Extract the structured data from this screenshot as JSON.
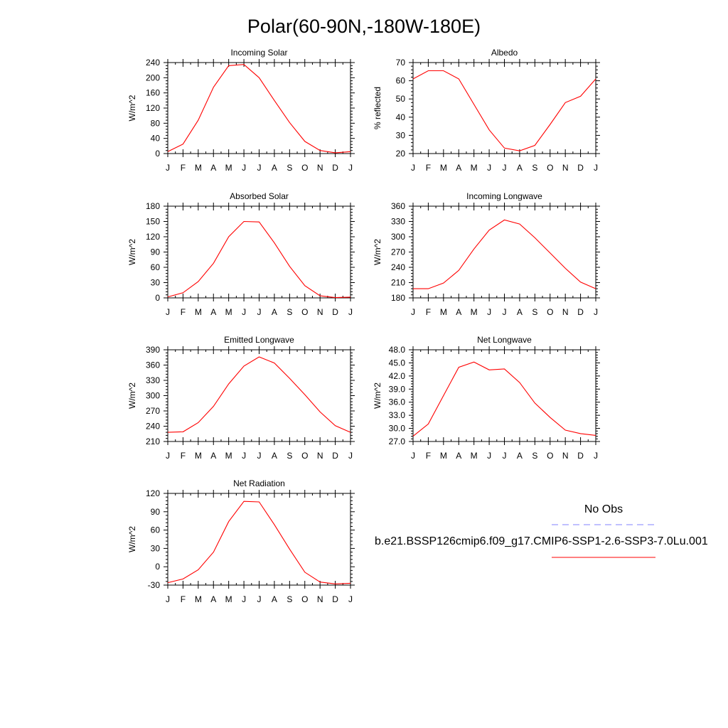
{
  "figure": {
    "title": "Polar(60-90N,-180W-180E)"
  },
  "chart_data": [
    {
      "type": "line",
      "title": "Incoming Solar",
      "xlabel": "",
      "ylabel": "W/m^2",
      "x": [
        "J",
        "F",
        "M",
        "A",
        "M",
        "J",
        "J",
        "A",
        "S",
        "O",
        "N",
        "D",
        "J"
      ],
      "ylim": [
        0,
        240
      ],
      "yticks": [
        0,
        40,
        80,
        120,
        160,
        200,
        240
      ],
      "ytick_labels": [
        "0",
        "40",
        "80",
        "120",
        "160",
        "200",
        "240"
      ],
      "series": [
        {
          "values": [
            5,
            25,
            88,
            175,
            232,
            235,
            200,
            140,
            82,
            32,
            8,
            2,
            5
          ]
        }
      ]
    },
    {
      "type": "line",
      "title": "Albedo",
      "xlabel": "",
      "ylabel": "% reflected",
      "x": [
        "J",
        "F",
        "M",
        "A",
        "M",
        "J",
        "J",
        "A",
        "S",
        "O",
        "N",
        "D",
        "J"
      ],
      "ylim": [
        20,
        70
      ],
      "yticks": [
        20,
        30,
        40,
        50,
        60,
        70
      ],
      "ytick_labels": [
        "20",
        "30",
        "40",
        "50",
        "60",
        "70"
      ],
      "series": [
        {
          "values": [
            61,
            65.5,
            65.5,
            61,
            47,
            33,
            23,
            21.5,
            24.5,
            36,
            48,
            51.5,
            61
          ]
        }
      ]
    },
    {
      "type": "line",
      "title": "Absorbed Solar",
      "xlabel": "",
      "ylabel": "W/m^2",
      "x": [
        "J",
        "F",
        "M",
        "A",
        "M",
        "J",
        "J",
        "A",
        "S",
        "O",
        "N",
        "D",
        "J"
      ],
      "ylim": [
        0,
        180
      ],
      "yticks": [
        0,
        30,
        60,
        90,
        120,
        150,
        180
      ],
      "ytick_labels": [
        "0",
        "30",
        "60",
        "90",
        "120",
        "150",
        "180"
      ],
      "series": [
        {
          "values": [
            2,
            10,
            32,
            68,
            120,
            150,
            149,
            108,
            62,
            24,
            4,
            0.5,
            1.5
          ]
        }
      ]
    },
    {
      "type": "line",
      "title": "Incoming Longwave",
      "xlabel": "",
      "ylabel": "W/m^2",
      "x": [
        "J",
        "F",
        "M",
        "A",
        "M",
        "J",
        "J",
        "A",
        "S",
        "O",
        "N",
        "D",
        "J"
      ],
      "ylim": [
        180,
        360
      ],
      "yticks": [
        180,
        210,
        240,
        270,
        300,
        330,
        360
      ],
      "ytick_labels": [
        "180",
        "210",
        "240",
        "270",
        "300",
        "330",
        "360"
      ],
      "series": [
        {
          "values": [
            198,
            198,
            209,
            234,
            276,
            313,
            333,
            325,
            298,
            268,
            238,
            211,
            198
          ]
        }
      ]
    },
    {
      "type": "line",
      "title": "Emitted Longwave",
      "xlabel": "",
      "ylabel": "W/m^2",
      "x": [
        "J",
        "F",
        "M",
        "A",
        "M",
        "J",
        "J",
        "A",
        "S",
        "O",
        "N",
        "D",
        "J"
      ],
      "ylim": [
        210,
        390
      ],
      "yticks": [
        210,
        240,
        270,
        300,
        330,
        360,
        390
      ],
      "ytick_labels": [
        "210",
        "240",
        "270",
        "300",
        "330",
        "360",
        "390"
      ],
      "series": [
        {
          "values": [
            228,
            229,
            247,
            279,
            323,
            358,
            376,
            364,
            334,
            302,
            268,
            241,
            228
          ]
        }
      ]
    },
    {
      "type": "line",
      "title": "Net Longwave",
      "xlabel": "",
      "ylabel": "W/m^2",
      "x": [
        "J",
        "F",
        "M",
        "A",
        "M",
        "J",
        "J",
        "A",
        "S",
        "O",
        "N",
        "D",
        "J"
      ],
      "ylim": [
        27,
        48
      ],
      "yticks": [
        27,
        30,
        33,
        36,
        39,
        42,
        45,
        48
      ],
      "ytick_labels": [
        "27.0",
        "30.0",
        "33.0",
        "36.0",
        "39.0",
        "42.0",
        "45.0",
        "48.0"
      ],
      "series": [
        {
          "values": [
            28.2,
            31,
            37.5,
            44,
            45.2,
            43.4,
            43.6,
            40.5,
            35.8,
            32.5,
            29.6,
            28.8,
            28.4
          ]
        }
      ]
    },
    {
      "type": "line",
      "title": "Net Radiation",
      "xlabel": "",
      "ylabel": "W/m^2",
      "x": [
        "J",
        "F",
        "M",
        "A",
        "M",
        "J",
        "J",
        "A",
        "S",
        "O",
        "N",
        "D",
        "J"
      ],
      "ylim": [
        -30,
        120
      ],
      "yticks": [
        -30,
        0,
        30,
        60,
        90,
        120
      ],
      "ytick_labels": [
        "-30",
        "0",
        "30",
        "60",
        "90",
        "120"
      ],
      "series": [
        {
          "values": [
            -26,
            -20,
            -5,
            24,
            74,
            107,
            106,
            69,
            29,
            -9,
            -25,
            -28,
            -27
          ]
        }
      ]
    }
  ],
  "legend": {
    "items": [
      {
        "label": "No Obs",
        "color": "#8080ff",
        "style": "dashed"
      },
      {
        "label": "b.e21.BSSP126cmip6.f09_g17.CMIP6-SSP1-2.6-SSP3-7.0Lu.001",
        "color": "#ff0000",
        "style": "solid"
      }
    ]
  },
  "colors": {
    "model_line": "#ff0000",
    "obs_line": "#8080ff",
    "frame": "#000000"
  }
}
